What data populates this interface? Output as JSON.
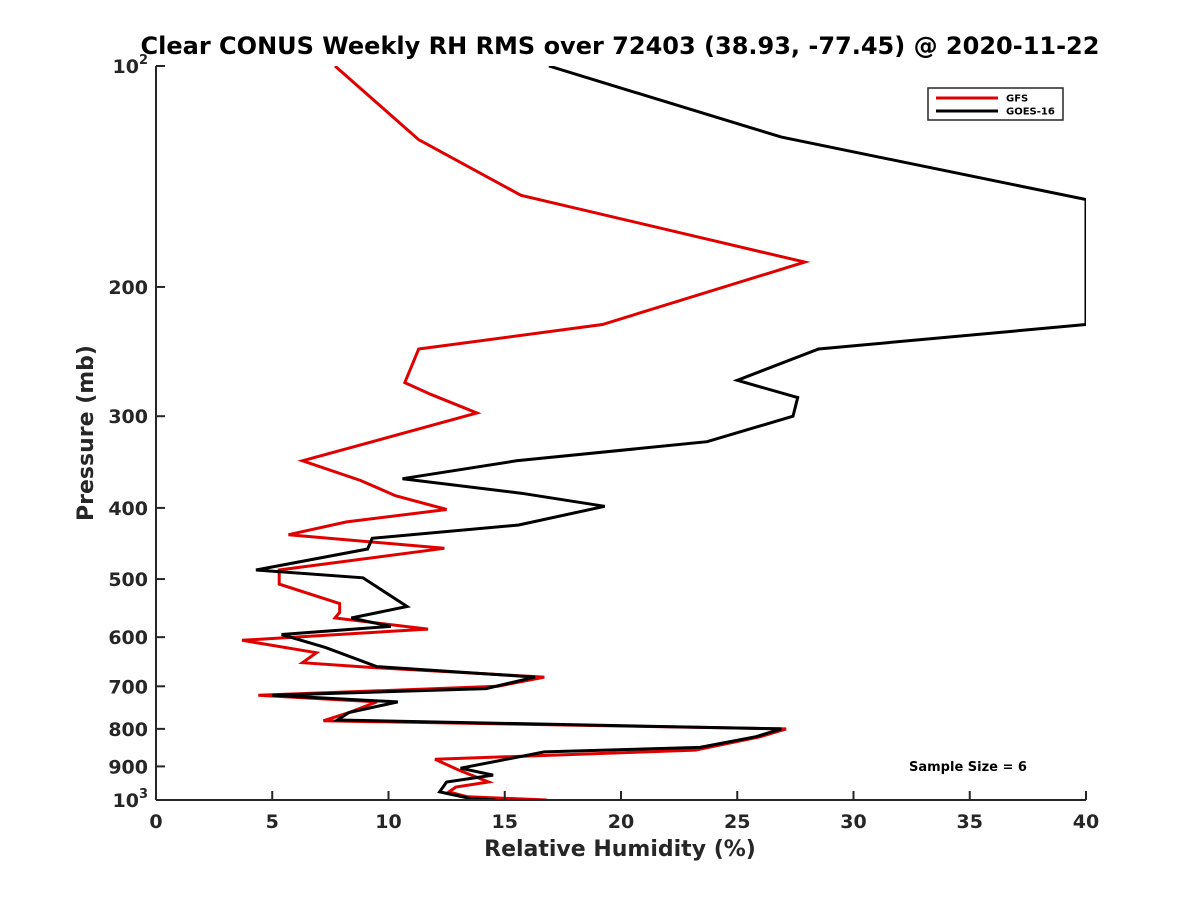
{
  "chart_data": {
    "type": "line",
    "title": "Clear CONUS Weekly RH RMS over 72403 (38.93, -77.45) @ 2020-11-22",
    "xlabel": "Relative Humidity (%)",
    "ylabel": "Pressure (mb)",
    "xlim": [
      0,
      40
    ],
    "ylim": [
      100,
      1000
    ],
    "y_scale": "log",
    "y_reversed": true,
    "x_ticks": [
      0,
      5,
      10,
      15,
      20,
      25,
      30,
      35,
      40
    ],
    "y_ticks": [
      {
        "value": 100,
        "base": "10",
        "exp": "2"
      },
      {
        "value": 200,
        "label": "200"
      },
      {
        "value": 300,
        "label": "300"
      },
      {
        "value": 400,
        "label": "400"
      },
      {
        "value": 500,
        "label": "500"
      },
      {
        "value": 600,
        "label": "600"
      },
      {
        "value": 700,
        "label": "700"
      },
      {
        "value": 800,
        "label": "800"
      },
      {
        "value": 900,
        "label": "900"
      },
      {
        "value": 1000,
        "base": "10",
        "exp": "3"
      }
    ],
    "legend_position": "top-right",
    "grid": false,
    "annotation": "Sample Size = 6",
    "series": [
      {
        "name": "GFS",
        "color": "#e00000",
        "points": [
          [
            7.7,
            100
          ],
          [
            11.3,
            126
          ],
          [
            15.7,
            150
          ],
          [
            27.9,
            185
          ],
          [
            19.2,
            225
          ],
          [
            11.3,
            243
          ],
          [
            10.7,
            270
          ],
          [
            11.8,
            280
          ],
          [
            13.8,
            297
          ],
          [
            6.3,
            345
          ],
          [
            8.8,
            367
          ],
          [
            10.3,
            385
          ],
          [
            12.5,
            402
          ],
          [
            8.2,
            418
          ],
          [
            5.7,
            435
          ],
          [
            12.4,
            454
          ],
          [
            5.3,
            486
          ],
          [
            5.3,
            508
          ],
          [
            7.9,
            540
          ],
          [
            7.9,
            555
          ],
          [
            7.7,
            565
          ],
          [
            11.7,
            585
          ],
          [
            3.7,
            606
          ],
          [
            6.9,
            630
          ],
          [
            6.3,
            650
          ],
          [
            9.3,
            660
          ],
          [
            16.7,
            680
          ],
          [
            14.7,
            700
          ],
          [
            4.4,
            720
          ],
          [
            9.5,
            735
          ],
          [
            8.3,
            760
          ],
          [
            7.2,
            780
          ],
          [
            27.1,
            800
          ],
          [
            26.0,
            820
          ],
          [
            23.2,
            855
          ],
          [
            12.0,
            880
          ],
          [
            13.0,
            910
          ],
          [
            14.3,
            945
          ],
          [
            12.9,
            960
          ],
          [
            12.6,
            975
          ],
          [
            13.4,
            990
          ],
          [
            16.8,
            1000
          ]
        ]
      },
      {
        "name": "GOES-16",
        "color": "#000000",
        "points": [
          [
            16.9,
            100
          ],
          [
            26.9,
            125
          ],
          [
            40.0,
            152
          ],
          [
            40.0,
            225
          ],
          [
            28.5,
            243
          ],
          [
            25.0,
            268
          ],
          [
            27.6,
            283
          ],
          [
            27.4,
            300
          ],
          [
            23.7,
            325
          ],
          [
            15.5,
            345
          ],
          [
            10.6,
            365
          ],
          [
            15.7,
            382
          ],
          [
            19.3,
            398
          ],
          [
            15.6,
            422
          ],
          [
            9.3,
            440
          ],
          [
            9.1,
            455
          ],
          [
            4.3,
            486
          ],
          [
            8.9,
            498
          ],
          [
            10.8,
            545
          ],
          [
            8.4,
            565
          ],
          [
            10.1,
            580
          ],
          [
            5.4,
            595
          ],
          [
            7.3,
            620
          ],
          [
            9.5,
            658
          ],
          [
            16.3,
            680
          ],
          [
            14.2,
            705
          ],
          [
            5.0,
            720
          ],
          [
            10.4,
            735
          ],
          [
            8.3,
            760
          ],
          [
            7.8,
            778
          ],
          [
            26.9,
            800
          ],
          [
            25.8,
            820
          ],
          [
            23.4,
            848
          ],
          [
            16.7,
            860
          ],
          [
            13.1,
            905
          ],
          [
            14.5,
            925
          ],
          [
            12.5,
            945
          ],
          [
            12.2,
            975
          ],
          [
            13.5,
            995
          ],
          [
            14.6,
            1000
          ]
        ]
      }
    ]
  }
}
